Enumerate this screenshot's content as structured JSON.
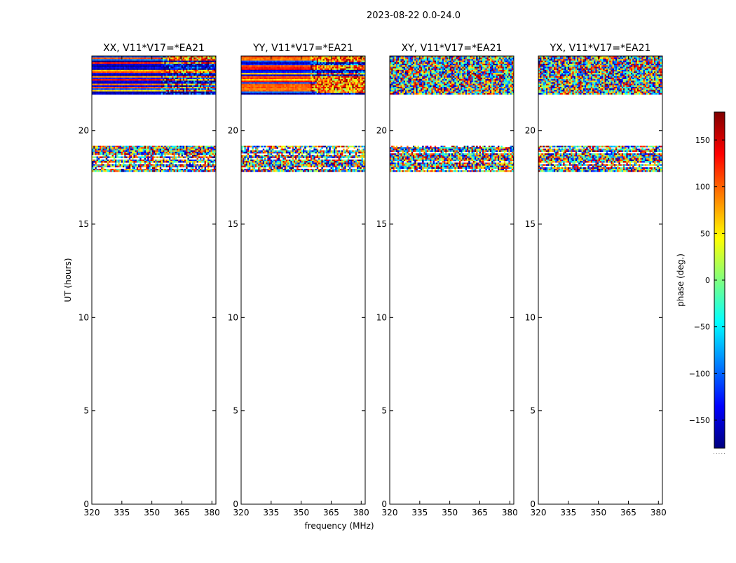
{
  "suptitle": "2023-08-22 0.0-24.0",
  "xlabel": "frequency (MHz)",
  "ylabel": "UT (hours)",
  "colorbar_label": "phase (deg.)",
  "colorbar_footnote": ". . . . .",
  "colorbar": {
    "range": [
      -180,
      180
    ],
    "ticks": [
      150,
      100,
      50,
      0,
      -50,
      -100,
      -150
    ],
    "tick_labels": [
      "150",
      "100",
      "50",
      "0",
      "−50",
      "−100",
      "−150"
    ],
    "colormap": "jet",
    "colors": [
      "#00007f",
      "#0000ff",
      "#007fff",
      "#00ffff",
      "#7fff7f",
      "#ffff00",
      "#ff7f00",
      "#ff0000",
      "#7f0000"
    ]
  },
  "chart_data": [
    {
      "type": "heatmap",
      "title": "XX, V11*V17=*EA21",
      "xlim": [
        320,
        382
      ],
      "ylim": [
        0,
        24
      ],
      "xticks": [
        320,
        335,
        350,
        365,
        380
      ],
      "yticks": [
        0,
        5,
        10,
        15,
        20
      ],
      "data_bands_hours": [
        [
          17.8,
          19.2
        ],
        [
          22.0,
          24.0
        ]
      ],
      "color_scale": "phase (deg.)"
    },
    {
      "type": "heatmap",
      "title": "YY, V11*V17=*EA21",
      "xlim": [
        320,
        382
      ],
      "ylim": [
        0,
        24
      ],
      "xticks": [
        320,
        335,
        350,
        365,
        380
      ],
      "yticks": [
        0,
        5,
        10,
        15,
        20
      ],
      "data_bands_hours": [
        [
          17.8,
          19.2
        ],
        [
          22.0,
          24.0
        ]
      ],
      "color_scale": "phase (deg.)"
    },
    {
      "type": "heatmap",
      "title": "XY, V11*V17=*EA21",
      "xlim": [
        320,
        382
      ],
      "ylim": [
        0,
        24
      ],
      "xticks": [
        320,
        335,
        350,
        365,
        380
      ],
      "yticks": [
        0,
        5,
        10,
        15,
        20
      ],
      "data_bands_hours": [
        [
          17.8,
          19.2
        ],
        [
          22.0,
          24.0
        ]
      ],
      "color_scale": "phase (deg.)"
    },
    {
      "type": "heatmap",
      "title": "YX, V11*V17=*EA21",
      "xlim": [
        320,
        382
      ],
      "ylim": [
        0,
        24
      ],
      "xticks": [
        320,
        335,
        350,
        365,
        380
      ],
      "yticks": [
        0,
        5,
        10,
        15,
        20
      ],
      "data_bands_hours": [
        [
          17.8,
          19.2
        ],
        [
          22.0,
          24.0
        ]
      ],
      "color_scale": "phase (deg.)"
    }
  ]
}
